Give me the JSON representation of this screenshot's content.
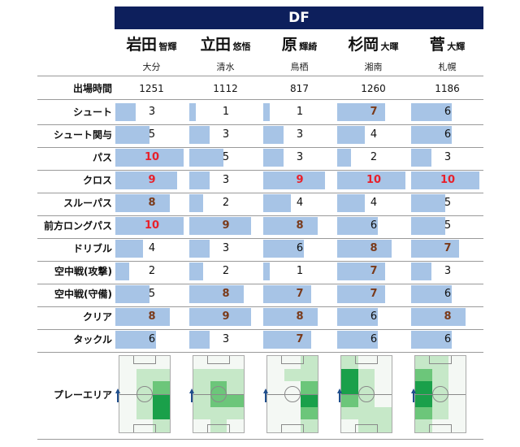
{
  "header": {
    "title": "DF"
  },
  "players": [
    {
      "surname": "岩田",
      "given": "智輝",
      "team": "大分",
      "minutes": "1251"
    },
    {
      "surname": "立田",
      "given": "悠悟",
      "team": "清水",
      "minutes": "1112"
    },
    {
      "surname": "原",
      "given": "輝綺",
      "team": "鳥栖",
      "minutes": "817"
    },
    {
      "surname": "杉岡",
      "given": "大暉",
      "team": "湘南",
      "minutes": "1260"
    },
    {
      "surname": "菅",
      "given": "大輝",
      "team": "札幌",
      "minutes": "1186"
    }
  ],
  "labels": {
    "minutes": "出場時間",
    "play_area": "プレーエリア"
  },
  "chart_data": {
    "type": "bar",
    "categories": [
      "シュート",
      "シュート関与",
      "パス",
      "クロス",
      "スルーパス",
      "前方ロングパス",
      "ドリブル",
      "空中戦(攻撃)",
      "空中戦(守備)",
      "クリア",
      "タックル"
    ],
    "ylim": [
      0,
      10
    ],
    "highlight_threshold": 7,
    "series": [
      {
        "values": [
          3,
          5,
          10,
          9,
          8,
          10,
          4,
          2,
          5,
          8,
          6
        ]
      },
      {
        "values": [
          1,
          3,
          5,
          3,
          2,
          9,
          3,
          2,
          8,
          9,
          3
        ]
      },
      {
        "values": [
          1,
          3,
          3,
          9,
          4,
          8,
          6,
          1,
          7,
          8,
          7
        ]
      },
      {
        "values": [
          7,
          4,
          2,
          10,
          4,
          6,
          8,
          7,
          7,
          6,
          6
        ]
      },
      {
        "values": [
          6,
          6,
          3,
          10,
          5,
          5,
          7,
          3,
          6,
          8,
          6
        ]
      }
    ]
  },
  "play_area_heatmaps": [
    [
      [
        0,
        0,
        0
      ],
      [
        0,
        1,
        1
      ],
      [
        0,
        1,
        2
      ],
      [
        0,
        1,
        3
      ],
      [
        0,
        1,
        3
      ],
      [
        0,
        0,
        1
      ]
    ],
    [
      [
        0,
        0,
        0
      ],
      [
        1,
        1,
        1
      ],
      [
        1,
        2,
        1
      ],
      [
        1,
        2,
        2
      ],
      [
        1,
        1,
        1
      ],
      [
        0,
        1,
        0
      ]
    ],
    [
      [
        0,
        0,
        1
      ],
      [
        0,
        1,
        1
      ],
      [
        0,
        0,
        2
      ],
      [
        0,
        0,
        3
      ],
      [
        0,
        0,
        2
      ],
      [
        0,
        0,
        1
      ]
    ],
    [
      [
        1,
        0,
        0
      ],
      [
        3,
        1,
        0
      ],
      [
        3,
        1,
        0
      ],
      [
        2,
        1,
        0
      ],
      [
        1,
        1,
        1
      ],
      [
        0,
        1,
        1
      ]
    ],
    [
      [
        1,
        1,
        0
      ],
      [
        2,
        1,
        0
      ],
      [
        3,
        1,
        0
      ],
      [
        3,
        1,
        0
      ],
      [
        2,
        1,
        0
      ],
      [
        1,
        0,
        0
      ]
    ]
  ],
  "colors": {
    "header_bg": "#0d1f5c",
    "bar": "#a7c4e6",
    "value_high": [
      "#7a3a1a",
      "#e8202a"
    ],
    "heat": [
      "#f4f8f4",
      "#c6e8c8",
      "#6cc67a",
      "#1aa04a"
    ]
  }
}
